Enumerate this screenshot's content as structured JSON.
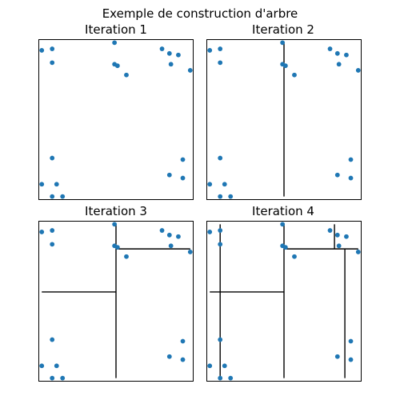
{
  "figure": {
    "suptitle": "Exemple de construction d'arbre",
    "point_color": "#1f77b4",
    "line_color": "#000000"
  },
  "chart_data": [
    {
      "type": "scatter",
      "title": "Iteration 1",
      "grid": false,
      "xlim": [
        -0.02,
        1.02
      ],
      "ylim": [
        -0.02,
        1.02
      ],
      "points": [
        [
          0.0,
          0.95
        ],
        [
          0.07,
          0.96
        ],
        [
          0.07,
          0.87
        ],
        [
          0.49,
          1.0
        ],
        [
          0.49,
          0.86
        ],
        [
          0.51,
          0.85
        ],
        [
          0.57,
          0.79
        ],
        [
          0.81,
          0.96
        ],
        [
          0.86,
          0.93
        ],
        [
          0.87,
          0.86
        ],
        [
          0.92,
          0.92
        ],
        [
          1.0,
          0.82
        ],
        [
          0.07,
          0.25
        ],
        [
          0.0,
          0.08
        ],
        [
          0.1,
          0.08
        ],
        [
          0.07,
          0.0
        ],
        [
          0.14,
          0.0
        ],
        [
          0.86,
          0.14
        ],
        [
          0.95,
          0.24
        ],
        [
          0.95,
          0.12
        ]
      ],
      "splits": []
    },
    {
      "type": "scatter",
      "title": "Iteration 2",
      "grid": false,
      "xlim": [
        -0.02,
        1.02
      ],
      "ylim": [
        -0.02,
        1.02
      ],
      "points": [
        [
          0.0,
          0.95
        ],
        [
          0.07,
          0.96
        ],
        [
          0.07,
          0.87
        ],
        [
          0.49,
          1.0
        ],
        [
          0.49,
          0.86
        ],
        [
          0.51,
          0.85
        ],
        [
          0.57,
          0.79
        ],
        [
          0.81,
          0.96
        ],
        [
          0.86,
          0.93
        ],
        [
          0.87,
          0.86
        ],
        [
          0.92,
          0.92
        ],
        [
          1.0,
          0.82
        ],
        [
          0.07,
          0.25
        ],
        [
          0.0,
          0.08
        ],
        [
          0.1,
          0.08
        ],
        [
          0.07,
          0.0
        ],
        [
          0.14,
          0.0
        ],
        [
          0.86,
          0.14
        ],
        [
          0.95,
          0.24
        ],
        [
          0.95,
          0.12
        ]
      ],
      "splits": [
        {
          "orientation": "vertical",
          "at": 0.5,
          "from": 0.0,
          "to": 1.0
        }
      ]
    },
    {
      "type": "scatter",
      "title": "Iteration 3",
      "grid": false,
      "xlim": [
        -0.02,
        1.02
      ],
      "ylim": [
        -0.02,
        1.02
      ],
      "points": [
        [
          0.0,
          0.95
        ],
        [
          0.07,
          0.96
        ],
        [
          0.07,
          0.87
        ],
        [
          0.49,
          1.0
        ],
        [
          0.49,
          0.86
        ],
        [
          0.51,
          0.85
        ],
        [
          0.57,
          0.79
        ],
        [
          0.81,
          0.96
        ],
        [
          0.86,
          0.93
        ],
        [
          0.87,
          0.86
        ],
        [
          0.92,
          0.92
        ],
        [
          1.0,
          0.82
        ],
        [
          0.07,
          0.25
        ],
        [
          0.0,
          0.08
        ],
        [
          0.1,
          0.08
        ],
        [
          0.07,
          0.0
        ],
        [
          0.14,
          0.0
        ],
        [
          0.86,
          0.14
        ],
        [
          0.95,
          0.24
        ],
        [
          0.95,
          0.12
        ]
      ],
      "splits": [
        {
          "orientation": "vertical",
          "at": 0.5,
          "from": 0.0,
          "to": 1.0
        },
        {
          "orientation": "horizontal",
          "at": 0.56,
          "from": 0.0,
          "to": 0.5
        },
        {
          "orientation": "horizontal",
          "at": 0.84,
          "from": 0.5,
          "to": 1.0
        }
      ]
    },
    {
      "type": "scatter",
      "title": "Iteration 4",
      "grid": false,
      "xlim": [
        -0.02,
        1.02
      ],
      "ylim": [
        -0.02,
        1.02
      ],
      "points": [
        [
          0.0,
          0.95
        ],
        [
          0.07,
          0.96
        ],
        [
          0.07,
          0.87
        ],
        [
          0.49,
          1.0
        ],
        [
          0.49,
          0.86
        ],
        [
          0.51,
          0.85
        ],
        [
          0.57,
          0.79
        ],
        [
          0.81,
          0.96
        ],
        [
          0.86,
          0.93
        ],
        [
          0.87,
          0.86
        ],
        [
          0.92,
          0.92
        ],
        [
          1.0,
          0.82
        ],
        [
          0.07,
          0.25
        ],
        [
          0.0,
          0.08
        ],
        [
          0.1,
          0.08
        ],
        [
          0.07,
          0.0
        ],
        [
          0.14,
          0.0
        ],
        [
          0.86,
          0.14
        ],
        [
          0.95,
          0.24
        ],
        [
          0.95,
          0.12
        ]
      ],
      "splits": [
        {
          "orientation": "vertical",
          "at": 0.5,
          "from": 0.0,
          "to": 1.0
        },
        {
          "orientation": "horizontal",
          "at": 0.56,
          "from": 0.0,
          "to": 0.5
        },
        {
          "orientation": "horizontal",
          "at": 0.84,
          "from": 0.5,
          "to": 1.0
        },
        {
          "orientation": "vertical",
          "at": 0.07,
          "from": 0.0,
          "to": 1.0
        },
        {
          "orientation": "vertical",
          "at": 0.84,
          "from": 0.84,
          "to": 1.0
        },
        {
          "orientation": "vertical",
          "at": 0.91,
          "from": 0.0,
          "to": 0.84
        }
      ]
    }
  ]
}
